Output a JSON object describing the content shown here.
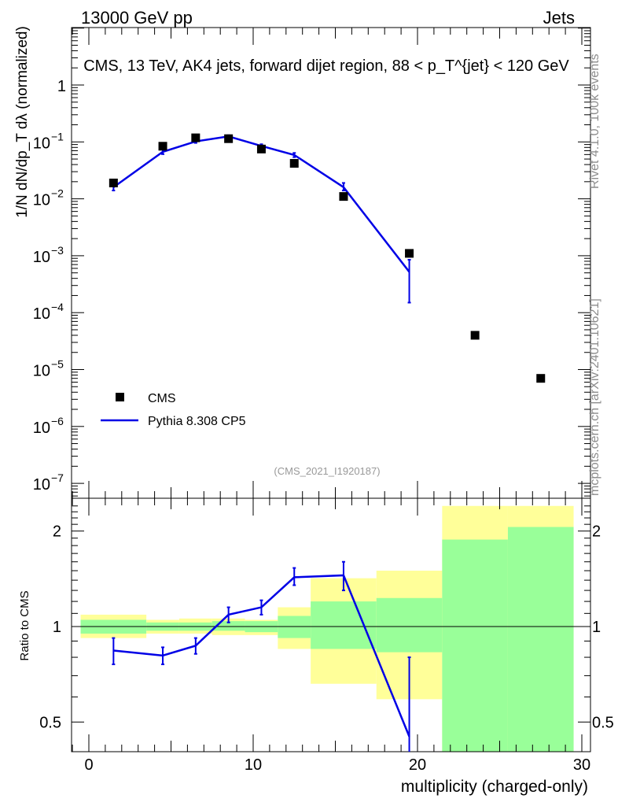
{
  "header": {
    "left": "13000 GeV pp",
    "right": "Jets"
  },
  "side_labels": {
    "rivet": "Rivet 4.1.0,  100k events",
    "mcplots": "mcplots.cern.ch [arXiv:2401.10621]"
  },
  "watermark": "(CMS_2021_I1920187)",
  "ylabel_main": "1/N dN/dp_T dλ (normalized)",
  "colors": {
    "mc": "#0000e6",
    "data": "#000000",
    "band_inner": "#99ff99",
    "band_outer": "#ffff99"
  },
  "chart_data": [
    {
      "type": "scatter",
      "panel": "main",
      "title": "CMS, 13 TeV, AK4 jets, forward dijet region, 88 < p_T^{jet} < 120 GeV",
      "xlabel": "multiplicity (charged-only)",
      "xlim": [
        -1,
        30
      ],
      "ylim": [
        5e-08,
        10
      ],
      "yscale": "log",
      "y_tick_labels": [
        "1",
        "10^-1",
        "10^-2",
        "10^-3",
        "10^-4",
        "10^-5",
        "10^-6",
        "10^-7"
      ],
      "legend_position": "bottom-left",
      "series": [
        {
          "name": "CMS",
          "kind": "points",
          "x": [
            1.5,
            4.5,
            6.5,
            8.5,
            10.5,
            12.5,
            15.5,
            19.5,
            23.5,
            27.5
          ],
          "y": [
            0.019,
            0.084,
            0.118,
            0.114,
            0.075,
            0.042,
            0.011,
            0.0011,
            4e-05,
            7e-06
          ]
        },
        {
          "name": "Pythia 8.308 CP5",
          "kind": "line",
          "x": [
            1.5,
            4.5,
            6.5,
            8.5,
            10.5,
            12.5,
            15.5,
            19.5
          ],
          "y": [
            0.016,
            0.067,
            0.102,
            0.125,
            0.085,
            0.059,
            0.016,
            0.00052
          ],
          "err_low": [
            0.002,
            0.006,
            0.006,
            0.006,
            0.006,
            0.005,
            0.002,
            0.00037
          ],
          "err_high": [
            0.002,
            0.006,
            0.006,
            0.006,
            0.006,
            0.005,
            0.003,
            0.00033
          ]
        }
      ]
    },
    {
      "type": "line",
      "panel": "ratio",
      "ylabel": "Ratio to CMS",
      "xlabel": "multiplicity (charged-only)",
      "xlim": [
        -1,
        30
      ],
      "ylim": [
        0.42,
        2.35
      ],
      "yscale": "log",
      "y_ticks": [
        0.5,
        1,
        2
      ],
      "x_ticks": [
        0,
        10,
        20,
        30
      ],
      "bands": [
        {
          "x0": -0.5,
          "x1": 3.5,
          "inner": [
            0.95,
            1.05
          ],
          "outer": [
            0.92,
            1.09
          ]
        },
        {
          "x0": 3.5,
          "x1": 5.5,
          "inner": [
            0.97,
            1.03
          ],
          "outer": [
            0.95,
            1.05
          ]
        },
        {
          "x0": 5.5,
          "x1": 7.5,
          "inner": [
            0.97,
            1.03
          ],
          "outer": [
            0.95,
            1.06
          ]
        },
        {
          "x0": 7.5,
          "x1": 9.5,
          "inner": [
            0.97,
            1.04
          ],
          "outer": [
            0.94,
            1.06
          ]
        },
        {
          "x0": 9.5,
          "x1": 11.5,
          "inner": [
            0.96,
            1.04
          ],
          "outer": [
            0.94,
            1.05
          ]
        },
        {
          "x0": 11.5,
          "x1": 13.5,
          "inner": [
            0.92,
            1.08
          ],
          "outer": [
            0.85,
            1.15
          ]
        },
        {
          "x0": 13.5,
          "x1": 17.5,
          "inner": [
            0.85,
            1.2
          ],
          "outer": [
            0.66,
            1.42
          ]
        },
        {
          "x0": 17.5,
          "x1": 21.5,
          "inner": [
            0.83,
            1.23
          ],
          "outer": [
            0.59,
            1.5
          ]
        },
        {
          "x0": 21.5,
          "x1": 25.5,
          "inner": [
            0.4,
            1.88
          ],
          "outer": [
            0.4,
            2.4
          ]
        },
        {
          "x0": 25.5,
          "x1": 29.5,
          "inner": [
            0.4,
            2.06
          ],
          "outer": [
            0.4,
            2.4
          ]
        }
      ],
      "series": [
        {
          "name": "Pythia 8.308 CP5",
          "x": [
            1.5,
            4.5,
            6.5,
            8.5,
            10.5,
            12.5,
            15.5,
            19.5
          ],
          "y": [
            0.84,
            0.81,
            0.87,
            1.09,
            1.15,
            1.43,
            1.45,
            0.45
          ],
          "err_low": [
            0.08,
            0.05,
            0.05,
            0.06,
            0.06,
            0.08,
            0.15,
            0.07
          ],
          "err_high": [
            0.08,
            0.05,
            0.05,
            0.06,
            0.06,
            0.1,
            0.15,
            0.35
          ]
        }
      ]
    }
  ]
}
